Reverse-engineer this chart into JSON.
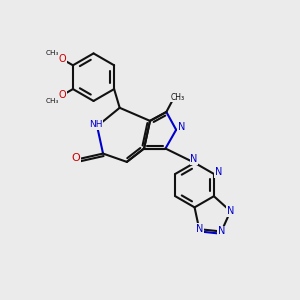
{
  "bg_color": "#ebebeb",
  "bond_color": "#111111",
  "N_color": "#0000cc",
  "O_color": "#cc0000",
  "lw": 1.5,
  "xlim": [
    0,
    10
  ],
  "ylim": [
    0,
    10
  ]
}
